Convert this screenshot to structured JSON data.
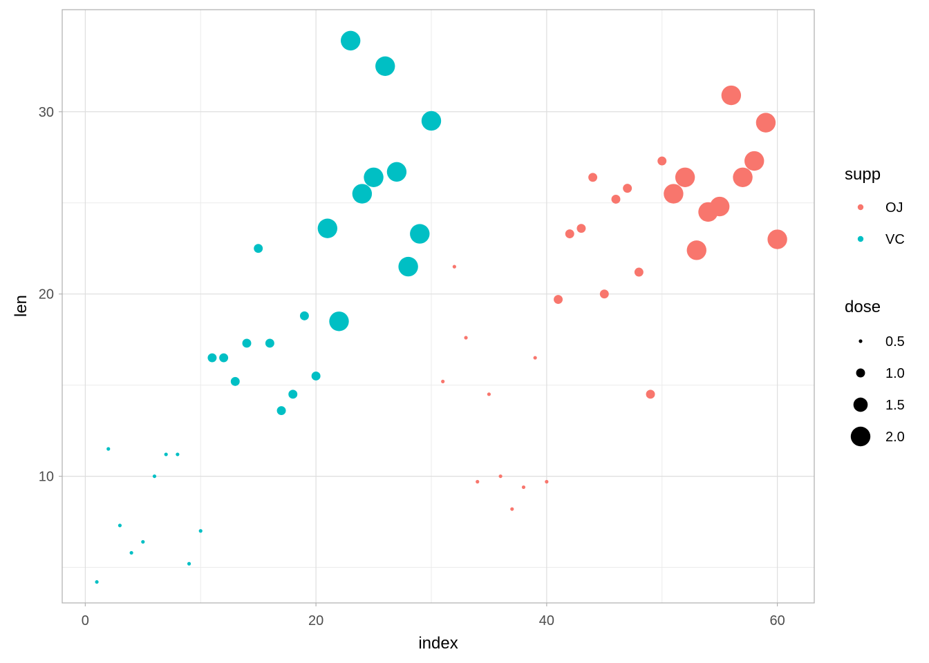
{
  "chart_data": {
    "type": "scatter",
    "title": "",
    "xlabel": "index",
    "ylabel": "len",
    "xlim": [
      -2,
      63.2
    ],
    "ylim": [
      3.05,
      35.6
    ],
    "x_ticks": [
      0,
      20,
      40,
      60
    ],
    "y_ticks": [
      10,
      20,
      30
    ],
    "x_minor_ticks": [
      10,
      30,
      50
    ],
    "y_minor_ticks": [
      5,
      15,
      25
    ],
    "grid": true,
    "legend_position": "right",
    "colors": {
      "OJ": "#F8766D",
      "VC": "#00BFC4"
    },
    "color_legend": {
      "title": "supp",
      "entries": [
        "OJ",
        "VC"
      ]
    },
    "size_legend": {
      "title": "dose",
      "entries": [
        0.5,
        1.0,
        1.5,
        2.0
      ],
      "labels": [
        "0.5",
        "1.0",
        "1.5",
        "2.0"
      ]
    },
    "points": [
      {
        "index": 1,
        "len": 4.2,
        "supp": "VC",
        "dose": 0.5
      },
      {
        "index": 2,
        "len": 11.5,
        "supp": "VC",
        "dose": 0.5
      },
      {
        "index": 3,
        "len": 7.3,
        "supp": "VC",
        "dose": 0.5
      },
      {
        "index": 4,
        "len": 5.8,
        "supp": "VC",
        "dose": 0.5
      },
      {
        "index": 5,
        "len": 6.4,
        "supp": "VC",
        "dose": 0.5
      },
      {
        "index": 6,
        "len": 10.0,
        "supp": "VC",
        "dose": 0.5
      },
      {
        "index": 7,
        "len": 11.2,
        "supp": "VC",
        "dose": 0.5
      },
      {
        "index": 8,
        "len": 11.2,
        "supp": "VC",
        "dose": 0.5
      },
      {
        "index": 9,
        "len": 5.2,
        "supp": "VC",
        "dose": 0.5
      },
      {
        "index": 10,
        "len": 7.0,
        "supp": "VC",
        "dose": 0.5
      },
      {
        "index": 11,
        "len": 16.5,
        "supp": "VC",
        "dose": 1.0
      },
      {
        "index": 12,
        "len": 16.5,
        "supp": "VC",
        "dose": 1.0
      },
      {
        "index": 13,
        "len": 15.2,
        "supp": "VC",
        "dose": 1.0
      },
      {
        "index": 14,
        "len": 17.3,
        "supp": "VC",
        "dose": 1.0
      },
      {
        "index": 15,
        "len": 22.5,
        "supp": "VC",
        "dose": 1.0
      },
      {
        "index": 16,
        "len": 17.3,
        "supp": "VC",
        "dose": 1.0
      },
      {
        "index": 17,
        "len": 13.6,
        "supp": "VC",
        "dose": 1.0
      },
      {
        "index": 18,
        "len": 14.5,
        "supp": "VC",
        "dose": 1.0
      },
      {
        "index": 19,
        "len": 18.8,
        "supp": "VC",
        "dose": 1.0
      },
      {
        "index": 20,
        "len": 15.5,
        "supp": "VC",
        "dose": 1.0
      },
      {
        "index": 21,
        "len": 23.6,
        "supp": "VC",
        "dose": 2.0
      },
      {
        "index": 22,
        "len": 18.5,
        "supp": "VC",
        "dose": 2.0
      },
      {
        "index": 23,
        "len": 33.9,
        "supp": "VC",
        "dose": 2.0
      },
      {
        "index": 24,
        "len": 25.5,
        "supp": "VC",
        "dose": 2.0
      },
      {
        "index": 25,
        "len": 26.4,
        "supp": "VC",
        "dose": 2.0
      },
      {
        "index": 26,
        "len": 32.5,
        "supp": "VC",
        "dose": 2.0
      },
      {
        "index": 27,
        "len": 26.7,
        "supp": "VC",
        "dose": 2.0
      },
      {
        "index": 28,
        "len": 21.5,
        "supp": "VC",
        "dose": 2.0
      },
      {
        "index": 29,
        "len": 23.3,
        "supp": "VC",
        "dose": 2.0
      },
      {
        "index": 30,
        "len": 29.5,
        "supp": "VC",
        "dose": 2.0
      },
      {
        "index": 31,
        "len": 15.2,
        "supp": "OJ",
        "dose": 0.5
      },
      {
        "index": 32,
        "len": 21.5,
        "supp": "OJ",
        "dose": 0.5
      },
      {
        "index": 33,
        "len": 17.6,
        "supp": "OJ",
        "dose": 0.5
      },
      {
        "index": 34,
        "len": 9.7,
        "supp": "OJ",
        "dose": 0.5
      },
      {
        "index": 35,
        "len": 14.5,
        "supp": "OJ",
        "dose": 0.5
      },
      {
        "index": 36,
        "len": 10.0,
        "supp": "OJ",
        "dose": 0.5
      },
      {
        "index": 37,
        "len": 8.2,
        "supp": "OJ",
        "dose": 0.5
      },
      {
        "index": 38,
        "len": 9.4,
        "supp": "OJ",
        "dose": 0.5
      },
      {
        "index": 39,
        "len": 16.5,
        "supp": "OJ",
        "dose": 0.5
      },
      {
        "index": 40,
        "len": 9.7,
        "supp": "OJ",
        "dose": 0.5
      },
      {
        "index": 41,
        "len": 19.7,
        "supp": "OJ",
        "dose": 1.0
      },
      {
        "index": 42,
        "len": 23.3,
        "supp": "OJ",
        "dose": 1.0
      },
      {
        "index": 43,
        "len": 23.6,
        "supp": "OJ",
        "dose": 1.0
      },
      {
        "index": 44,
        "len": 26.4,
        "supp": "OJ",
        "dose": 1.0
      },
      {
        "index": 45,
        "len": 20.0,
        "supp": "OJ",
        "dose": 1.0
      },
      {
        "index": 46,
        "len": 25.2,
        "supp": "OJ",
        "dose": 1.0
      },
      {
        "index": 47,
        "len": 25.8,
        "supp": "OJ",
        "dose": 1.0
      },
      {
        "index": 48,
        "len": 21.2,
        "supp": "OJ",
        "dose": 1.0
      },
      {
        "index": 49,
        "len": 14.5,
        "supp": "OJ",
        "dose": 1.0
      },
      {
        "index": 50,
        "len": 27.3,
        "supp": "OJ",
        "dose": 1.0
      },
      {
        "index": 51,
        "len": 25.5,
        "supp": "OJ",
        "dose": 2.0
      },
      {
        "index": 52,
        "len": 26.4,
        "supp": "OJ",
        "dose": 2.0
      },
      {
        "index": 53,
        "len": 22.4,
        "supp": "OJ",
        "dose": 2.0
      },
      {
        "index": 54,
        "len": 24.5,
        "supp": "OJ",
        "dose": 2.0
      },
      {
        "index": 55,
        "len": 24.8,
        "supp": "OJ",
        "dose": 2.0
      },
      {
        "index": 56,
        "len": 30.9,
        "supp": "OJ",
        "dose": 2.0
      },
      {
        "index": 57,
        "len": 26.4,
        "supp": "OJ",
        "dose": 2.0
      },
      {
        "index": 58,
        "len": 27.3,
        "supp": "OJ",
        "dose": 2.0
      },
      {
        "index": 59,
        "len": 29.4,
        "supp": "OJ",
        "dose": 2.0
      },
      {
        "index": 60,
        "len": 23.0,
        "supp": "OJ",
        "dose": 2.0
      }
    ]
  }
}
